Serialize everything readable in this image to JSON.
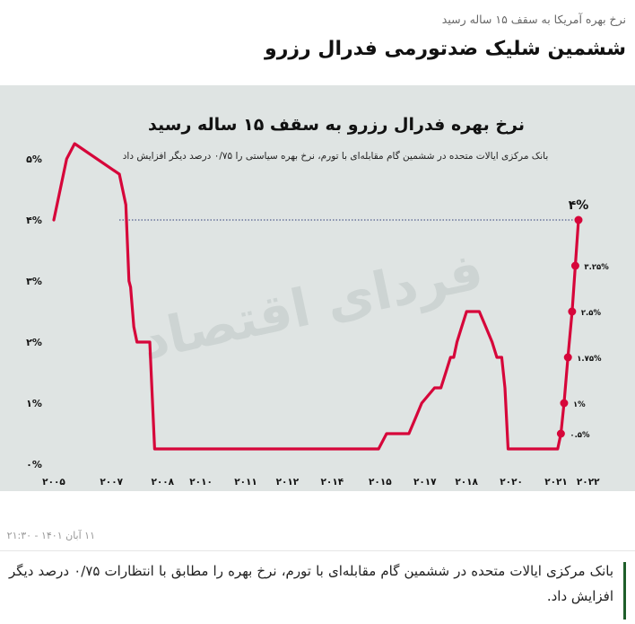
{
  "article": {
    "kicker": "نرخ بهره آمریکا به سقف ۱۵ ساله رسید",
    "headline": "ششمین شلیک ضدتورمی فدرال رزرو",
    "timestamp": "۱۱ آبان ۱۴۰۱ - ۲۱:۳۰",
    "lead": "بانک مرکزی ایالات متحده در ششمین گام مقابله‌ای با تورم، نرخ بهره را مطابق با انتظارات ۰/۷۵ درصد دیگر افزایش داد."
  },
  "watermark": "فردای اقتصاد",
  "chart_data": {
    "type": "line",
    "title": "نرخ بهره فدرال رزرو به سقف ۱۵ ساله رسید",
    "subtitle": "بانک مرکزی ایالات متحده در ششمین گام مقابله‌ای با تورم، نرخ بهره سیاستی را ۰/۷۵ درصد دیگر افزایش داد",
    "xlabel": "",
    "ylabel": "",
    "ylim": [
      0,
      5.5
    ],
    "grid": false,
    "y_ticks": [
      {
        "value": 0,
        "label": "۰%"
      },
      {
        "value": 1,
        "label": "۱%"
      },
      {
        "value": 2,
        "label": "۲%"
      },
      {
        "value": 3,
        "label": "۳%"
      },
      {
        "value": 4,
        "label": "۴%"
      },
      {
        "value": 5,
        "label": "۵%"
      }
    ],
    "x_ticks": [
      {
        "value": 2005,
        "label": "۲۰۰۵"
      },
      {
        "value": 2006.8,
        "label": "۲۰۰۷"
      },
      {
        "value": 2008.4,
        "label": "۲۰۰۸"
      },
      {
        "value": 2009.6,
        "label": "۲۰۱۰"
      },
      {
        "value": 2011,
        "label": "۲۰۱۱"
      },
      {
        "value": 2012.3,
        "label": "۲۰۱۲"
      },
      {
        "value": 2013.7,
        "label": "۲۰۱۴"
      },
      {
        "value": 2015.2,
        "label": "۲۰۱۵"
      },
      {
        "value": 2016.6,
        "label": "۲۰۱۷"
      },
      {
        "value": 2017.9,
        "label": "۲۰۱۸"
      },
      {
        "value": 2019.3,
        "label": "۲۰۲۰"
      },
      {
        "value": 2020.7,
        "label": "۲۰۲۱"
      },
      {
        "value": 2021.7,
        "label": "۲۰۲۲"
      }
    ],
    "series": [
      {
        "color": "#d6063a",
        "x": [
          2005.0,
          2005.4,
          2005.65,
          2007.05,
          2007.25,
          2007.35,
          2007.4,
          2007.5,
          2007.6,
          2008.0,
          2008.15,
          2015.15,
          2015.4,
          2016.1,
          2016.3,
          2016.5,
          2016.9,
          2017.1,
          2017.25,
          2017.4,
          2017.5,
          2017.6,
          2017.75,
          2017.9,
          2018.3,
          2018.5,
          2018.7,
          2018.85,
          2019.0,
          2019.1,
          2019.2,
          2020.75,
          2020.85,
          2020.95,
          2021.07,
          2021.2,
          2021.4
        ],
        "y": [
          4.0,
          5.0,
          5.25,
          4.75,
          4.25,
          3.0,
          2.9,
          2.25,
          2.0,
          2.0,
          0.25,
          0.25,
          0.5,
          0.5,
          0.75,
          1.0,
          1.25,
          1.25,
          1.5,
          1.75,
          1.75,
          2.0,
          2.25,
          2.5,
          2.5,
          2.25,
          2.0,
          1.75,
          1.75,
          1.25,
          0.25,
          0.25,
          0.5,
          1.0,
          1.75,
          2.5,
          4.0
        ]
      }
    ],
    "points": [
      {
        "x": 2020.85,
        "y": 0.5,
        "label": "۰.۵%"
      },
      {
        "x": 2020.95,
        "y": 1.0,
        "label": "۱%"
      },
      {
        "x": 2021.07,
        "y": 1.75,
        "label": "۱.۷۵%"
      },
      {
        "x": 2021.2,
        "y": 2.5,
        "label": "۲.۵%"
      },
      {
        "x": 2021.3,
        "y": 3.25,
        "label": "۳.۲۵%"
      },
      {
        "x": 2021.4,
        "y": 4.0,
        "label": "۴%"
      }
    ],
    "reference_line": {
      "y": 4.0,
      "style": "dotted"
    }
  }
}
